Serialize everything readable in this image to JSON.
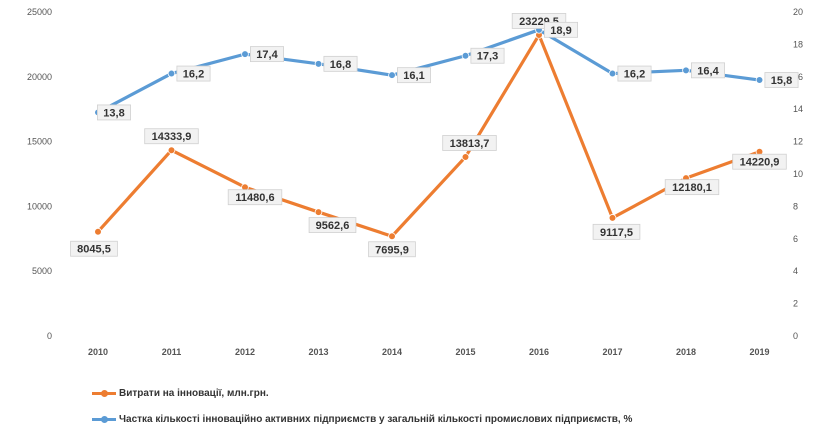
{
  "chart_data": {
    "type": "line",
    "categories": [
      "2010",
      "2011",
      "2012",
      "2013",
      "2014",
      "2015",
      "2016",
      "2017",
      "2018",
      "2019"
    ],
    "y_left": {
      "ylim": [
        0,
        25000
      ],
      "ticks": [
        "0",
        "5000",
        "10000",
        "15000",
        "20000",
        "25000"
      ]
    },
    "y_right": {
      "ylim": [
        0,
        20
      ],
      "ticks": [
        "0",
        "2",
        "4",
        "6",
        "8",
        "10",
        "12",
        "14",
        "16",
        "18",
        "20"
      ]
    },
    "grid": false,
    "legend_position": "bottom-left",
    "series": [
      {
        "name": "Витрати на інновації, млн.грн.",
        "axis": "left",
        "color": "#ed7d31",
        "values": [
          8045.5,
          14333.9,
          11480.6,
          9562.6,
          7695.9,
          13813.7,
          23229.5,
          9117.5,
          12180.1,
          14220.9
        ],
        "labels": [
          "8045,5",
          "14333,9",
          "11480,6",
          "9562,6",
          "7695,9",
          "13813,7",
          "23229,5",
          "9117,5",
          "12180,1",
          "14220,9"
        ]
      },
      {
        "name": "Частка кількості інноваційно активних підприємств у загальній кількості промислових підприємств, %",
        "axis": "right",
        "color": "#5b9bd5",
        "values": [
          13.8,
          16.2,
          17.4,
          16.8,
          16.1,
          17.3,
          18.9,
          16.2,
          16.4,
          15.8
        ],
        "labels": [
          "13,8",
          "16,2",
          "17,4",
          "16,8",
          "16,1",
          "17,3",
          "18,9",
          "16,2",
          "16,4",
          "15,8"
        ]
      }
    ]
  }
}
